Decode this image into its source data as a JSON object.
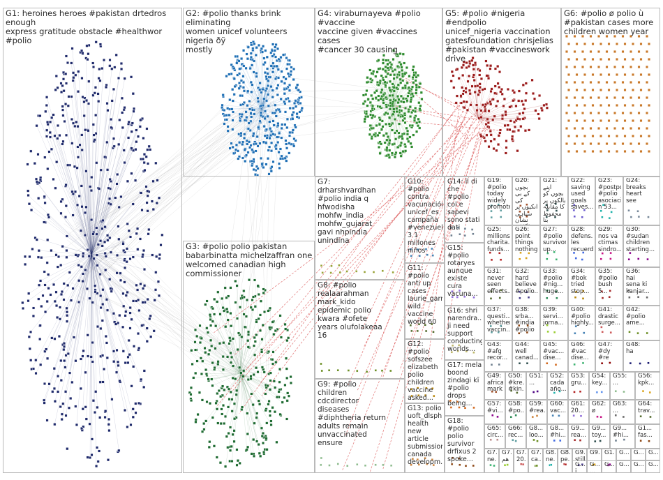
{
  "groups": [
    {
      "id": "G1",
      "text": "G1: heroines heroes #pakistan drtedros enough\nexpress gratitude obstacle #healthwor #polio",
      "color": "#1f2a6b",
      "nodes": 600
    },
    {
      "id": "G2",
      "text": "G2: #polio thanks brink eliminating\nwomen unicef volunteers nigeria ðÿ\nmostly",
      "color": "#1f6fb5",
      "nodes": 420
    },
    {
      "id": "G3",
      "text": "G3: #polio polio pakistan\nbabarbinatta michelzaffran one\nwelcomed canadian high\ncommissioner",
      "color": "#1f6b32",
      "nodes": 320
    },
    {
      "id": "G4",
      "text": "G4: viraburnayeva #polio #vaccine\nvaccine given #vaccines cases\n#cancer 30 causing",
      "color": "#2e8b2e",
      "nodes": 380
    },
    {
      "id": "G5",
      "text": "G5: #polio #nigeria #endpolio\nunicef_nigeria vaccination\ngatesfoundation chrisjelias\n#pakistan #vaccineswork drive",
      "color": "#9b1b1b",
      "nodes": 190
    },
    {
      "id": "G6",
      "text": "G6: #polio ø polio ù\n#pakistan cases more\nchildren women year",
      "color": "#c9792a",
      "nodes": 180
    },
    {
      "id": "G7",
      "text": "G7:\ndrharshvardhan\n#polio india q\nhfwodisha\nmohfw_india\nmohfw_gujarat\ngavi nhpindia\nunindina",
      "color": "#9aa43a",
      "nodes": 12
    },
    {
      "id": "G8",
      "text": "G8: #polio\nrealaarahman\nmark_kido\nepidemic polio\nkwara #ofete\nyears olufolakeaa\n16",
      "color": "#6b8e23",
      "nodes": 10
    },
    {
      "id": "G9",
      "text": "G9: #polio\nchildren\ncdcdirector\ndiseases\n#diphtheria return\nadults remain\nunvaccinated\nensure",
      "color": "#8fbc8f",
      "nodes": 10
    },
    {
      "id": "G10",
      "text": "G10: #polio\ncontra\nvacunación\nunicef_es\ncampaña\n#venezuela\n3 1 millones\nniños",
      "color": "#4682b4",
      "nodes": 8
    },
    {
      "id": "G11",
      "text": "G11: #polio\nanti up\ncases\nlaurie_garr...\nwild\nvaccine\nworld 60",
      "color": "#556b2f",
      "nodes": 8
    },
    {
      "id": "G12",
      "text": "G12: #polio\nsofszee\nelizabeth\npolio\nchildren\nvaccine\nasked...",
      "color": "#b8860b",
      "nodes": 8
    },
    {
      "id": "G13",
      "text": "G13: polio\nuoft_dlsph\nhealth new\narticle\nsubmission\ncanada\ndevelopm...",
      "color": "#cd853f",
      "nodes": 8
    },
    {
      "id": "G14",
      "text": "G14: il di\nche #polio\ncol e\nsapevi\nsono stati\ndati",
      "color": "#708090",
      "nodes": 8
    },
    {
      "id": "G15",
      "text": "G15:\n#polio\nrotaryes\naunque\nexiste cura\nvacuna...",
      "color": "#9370db",
      "nodes": 6
    },
    {
      "id": "G16",
      "text": "G16: shri\nnarendra...\nji need\nsupport\nconducting\nworlds...",
      "color": "#bdb76b",
      "nodes": 6
    },
    {
      "id": "G17",
      "text": "G17: mela\nboond\nzindagi kī\n#polio\ndrops\nbeing...",
      "color": "#d2691e",
      "nodes": 6
    },
    {
      "id": "G18",
      "text": "G18: #polio\npolio\nsurvivor\ndrfixus 2\nspoke...",
      "color": "#8b4513",
      "nodes": 6
    },
    {
      "id": "G19",
      "text": "G19:\n#polio\ntoday\nwidely\npromoted...",
      "color": "#5f9ea0",
      "nodes": 6
    },
    {
      "id": "G20",
      "text": "G20: بچوں\nکے بی کی\nانکیوں پر\nسیاہی نشان\nلگا کر",
      "color": "#a0522d",
      "nodes": 6
    },
    {
      "id": "G21",
      "text": "G21: اپنے\nبچوں کو\nبالکوں پر\nکا مقابلہ\nمحفوظ بنا",
      "color": "#2f4f4f",
      "nodes": 6
    },
    {
      "id": "G22",
      "text": "G22:\nsaving\nused\ngoals\nsaves...",
      "color": "#6a5acd",
      "nodes": 5
    },
    {
      "id": "G23",
      "text": "G23:\n#postpo...\n#polio\nasociació\nn 53...",
      "color": "#20b2aa",
      "nodes": 5
    },
    {
      "id": "G24",
      "text": "G24:\nbreaks\nheart\nsee",
      "color": "#778899",
      "nodes": 5
    },
    {
      "id": "G25",
      "text": "G25:\nmillions\ncharita...\nfunds...",
      "color": "#b22222",
      "nodes": 5
    },
    {
      "id": "G26",
      "text": "G26:\npoint\nthings\nnothing...",
      "color": "#daa520",
      "nodes": 5
    },
    {
      "id": "G27",
      "text": "G27:\n#polio\nsurvivor\nup...",
      "color": "#3cb371",
      "nodes": 4
    },
    {
      "id": "G28",
      "text": "G28:\ndefens...\nles\nrecuerd...",
      "color": "#4169e1",
      "nodes": 4
    },
    {
      "id": "G29",
      "text": "G29:\nnos va\nctimas\nsindro...",
      "color": "#c71585",
      "nodes": 4
    },
    {
      "id": "G30",
      "text": "G30:\n#sudan\nchildren\nstarting...",
      "color": "#8b008b",
      "nodes": 4
    },
    {
      "id": "G31",
      "text": "G31:\nnever\nseen\neffects...",
      "color": "#556b2f",
      "nodes": 4
    },
    {
      "id": "G32",
      "text": "G32:\nhard\nbelieve\n#polio...",
      "color": "#483d8b",
      "nodes": 4
    },
    {
      "id": "G33",
      "text": "G33:\n#polio\n#nig...\nhuge...",
      "color": "#2e8b57",
      "nodes": 4
    },
    {
      "id": "G34",
      "text": "G34:\n#bok\ntried\nstop...",
      "color": "#b8860b",
      "nodes": 4
    },
    {
      "id": "G35",
      "text": "G35:\n#polio\nbush\n5...",
      "color": "#a52a2a",
      "nodes": 4
    },
    {
      "id": "G36",
      "text": "G36:\nhai\nsena ki\nkanjar...",
      "color": "#696969",
      "nodes": 4
    },
    {
      "id": "G37",
      "text": "G37:\nquesti...\nwhether\nvaccin...",
      "color": "#5f9ea0",
      "nodes": 4
    },
    {
      "id": "G38",
      "text": "G38:\nsrba...\n#india\n#polio",
      "color": "#8b4513",
      "nodes": 4
    },
    {
      "id": "G39",
      "text": "G39:\nservi...\njorna...",
      "color": "#9acd32",
      "nodes": 3
    },
    {
      "id": "G40",
      "text": "G40:\n#polio\nhighly...",
      "color": "#4682b4",
      "nodes": 3
    },
    {
      "id": "G41",
      "text": "G41:\ndrastic\nsurge...",
      "color": "#cd5c5c",
      "nodes": 3
    },
    {
      "id": "G42",
      "text": "G42:\n#polio\name...",
      "color": "#6b8e23",
      "nodes": 3
    },
    {
      "id": "G43",
      "text": "G43:\n#afg\nrecor...",
      "color": "#708090",
      "nodes": 3
    },
    {
      "id": "G44",
      "text": "G44:\nwell\ncanad...",
      "color": "#2f4f4f",
      "nodes": 3
    },
    {
      "id": "G45",
      "text": "G45:\n#vac...\ndise...",
      "color": "#d2691e",
      "nodes": 3
    },
    {
      "id": "G46",
      "text": "G46:\n#vac\ndise...",
      "color": "#3cb371",
      "nodes": 3
    },
    {
      "id": "G47",
      "text": "G47:\n#dy\n#re",
      "color": "#8b0000",
      "nodes": 3
    },
    {
      "id": "G48",
      "text": "G48:\nha",
      "color": "#191970",
      "nodes": 3
    },
    {
      "id": "G49",
      "text": "G49:\nafrica\nmark...",
      "color": "#a0522d",
      "nodes": 3
    },
    {
      "id": "G50",
      "text": "G50:\n#kre...\n#kin...",
      "color": "#556b2f",
      "nodes": 3
    },
    {
      "id": "G51",
      "text": "G51:\n...",
      "color": "#4b0082",
      "nodes": 3
    },
    {
      "id": "G52",
      "text": "G52:\ncada\naño...",
      "color": "#20b2aa",
      "nodes": 3
    },
    {
      "id": "G53",
      "text": "G53:\ngru...",
      "color": "#b22222",
      "nodes": 3
    },
    {
      "id": "G54",
      "text": "G54:\nkey...",
      "color": "#6495ed",
      "nodes": 3
    },
    {
      "id": "G55",
      "text": "G55:\n...",
      "color": "#8fbc8f",
      "nodes": 3
    },
    {
      "id": "G56",
      "text": "G56:\nkpk...",
      "color": "#daa520",
      "nodes": 3
    },
    {
      "id": "G57",
      "text": "G57:\n#vi...",
      "color": "#8b008b",
      "nodes": 3
    },
    {
      "id": "G58",
      "text": "G58:\n#po...",
      "color": "#2e8b57",
      "nodes": 3
    },
    {
      "id": "G59",
      "text": "G59:\n#rea...",
      "color": "#cd853f",
      "nodes": 3
    },
    {
      "id": "G60",
      "text": "G60:\nvac...",
      "color": "#4682b4",
      "nodes": 3
    },
    {
      "id": "G61",
      "text": "G61:\n20...",
      "color": "#9370db",
      "nodes": 3
    },
    {
      "id": "G62",
      "text": "G62:\nø",
      "color": "#c71585",
      "nodes": 3
    },
    {
      "id": "G63",
      "text": "G63:\n...",
      "color": "#696969",
      "nodes": 3
    },
    {
      "id": "G64",
      "text": "G64:\ntrav...",
      "color": "#556b2f",
      "nodes": 3
    },
    {
      "id": "G65",
      "text": "G65:\ncirc...",
      "color": "#bc8f8f",
      "nodes": 3
    },
    {
      "id": "G66",
      "text": "G66:\nrec...",
      "color": "#5f9ea0",
      "nodes": 3
    },
    {
      "id": "G8x",
      "text": "G8...\nloo...",
      "color": "#6b8e23",
      "nodes": 2
    },
    {
      "id": "G8y",
      "text": "G8...\n#hi...",
      "color": "#4169e1",
      "nodes": 2
    },
    {
      "id": "G9x",
      "text": "G9...\nrea...",
      "color": "#a52a2a",
      "nodes": 2
    },
    {
      "id": "G9y",
      "text": "G9...\ntoy...",
      "color": "#2f4f4f",
      "nodes": 2
    },
    {
      "id": "G9z",
      "text": "G9...\n#hi...",
      "color": "#708090",
      "nodes": 2
    },
    {
      "id": "G1x",
      "text": "G1...\nfas...",
      "color": "#8b4513",
      "nodes": 2
    },
    {
      "id": "G7a",
      "text": "G7...\nne...",
      "color": "#3cb371",
      "nodes": 2
    },
    {
      "id": "G7b",
      "text": "G7...\nهم",
      "color": "#9acd32",
      "nodes": 2
    },
    {
      "id": "G7c",
      "text": "G7...\n20...",
      "color": "#cd5c5c",
      "nodes": 2
    },
    {
      "id": "G7d",
      "text": "G7...\nca...",
      "color": "#6b8e23",
      "nodes": 2
    },
    {
      "id": "G8a",
      "text": "G8...\nne...",
      "color": "#20b2aa",
      "nodes": 2
    },
    {
      "id": "G8b",
      "text": "G8...\npe...",
      "color": "#b22222",
      "nodes": 2
    },
    {
      "id": "G9a",
      "text": "G9...\nstill...",
      "color": "#483d8b",
      "nodes": 2
    },
    {
      "id": "G9b",
      "text": "G9...\n...",
      "color": "#daa520",
      "nodes": 2
    },
    {
      "id": "G1a",
      "text": "G1...\n...",
      "color": "#8b008b",
      "nodes": 2
    },
    {
      "id": "Gz1",
      "text": "G...",
      "color": "#2e8b57",
      "nodes": 2
    },
    {
      "id": "Gz2",
      "text": "G...",
      "color": "#4682b4",
      "nodes": 2
    },
    {
      "id": "Gz3",
      "text": "G...",
      "color": "#9370db",
      "nodes": 2
    },
    {
      "id": "Gz4",
      "text": "G...",
      "color": "#c71585",
      "nodes": 2
    },
    {
      "id": "Gz5",
      "text": "G...",
      "color": "#696969",
      "nodes": 2
    },
    {
      "id": "Gz6",
      "text": "G...",
      "color": "#556b2f",
      "nodes": 2
    },
    {
      "id": "Gz7",
      "text": "G...",
      "color": "#bc8f8f",
      "nodes": 2
    },
    {
      "id": "Gz8",
      "text": "G...\n...",
      "color": "#5f9ea0",
      "nodes": 2
    },
    {
      "id": "Gz9",
      "text": "G...\ni up",
      "color": "#a0522d",
      "nodes": 2
    }
  ]
}
